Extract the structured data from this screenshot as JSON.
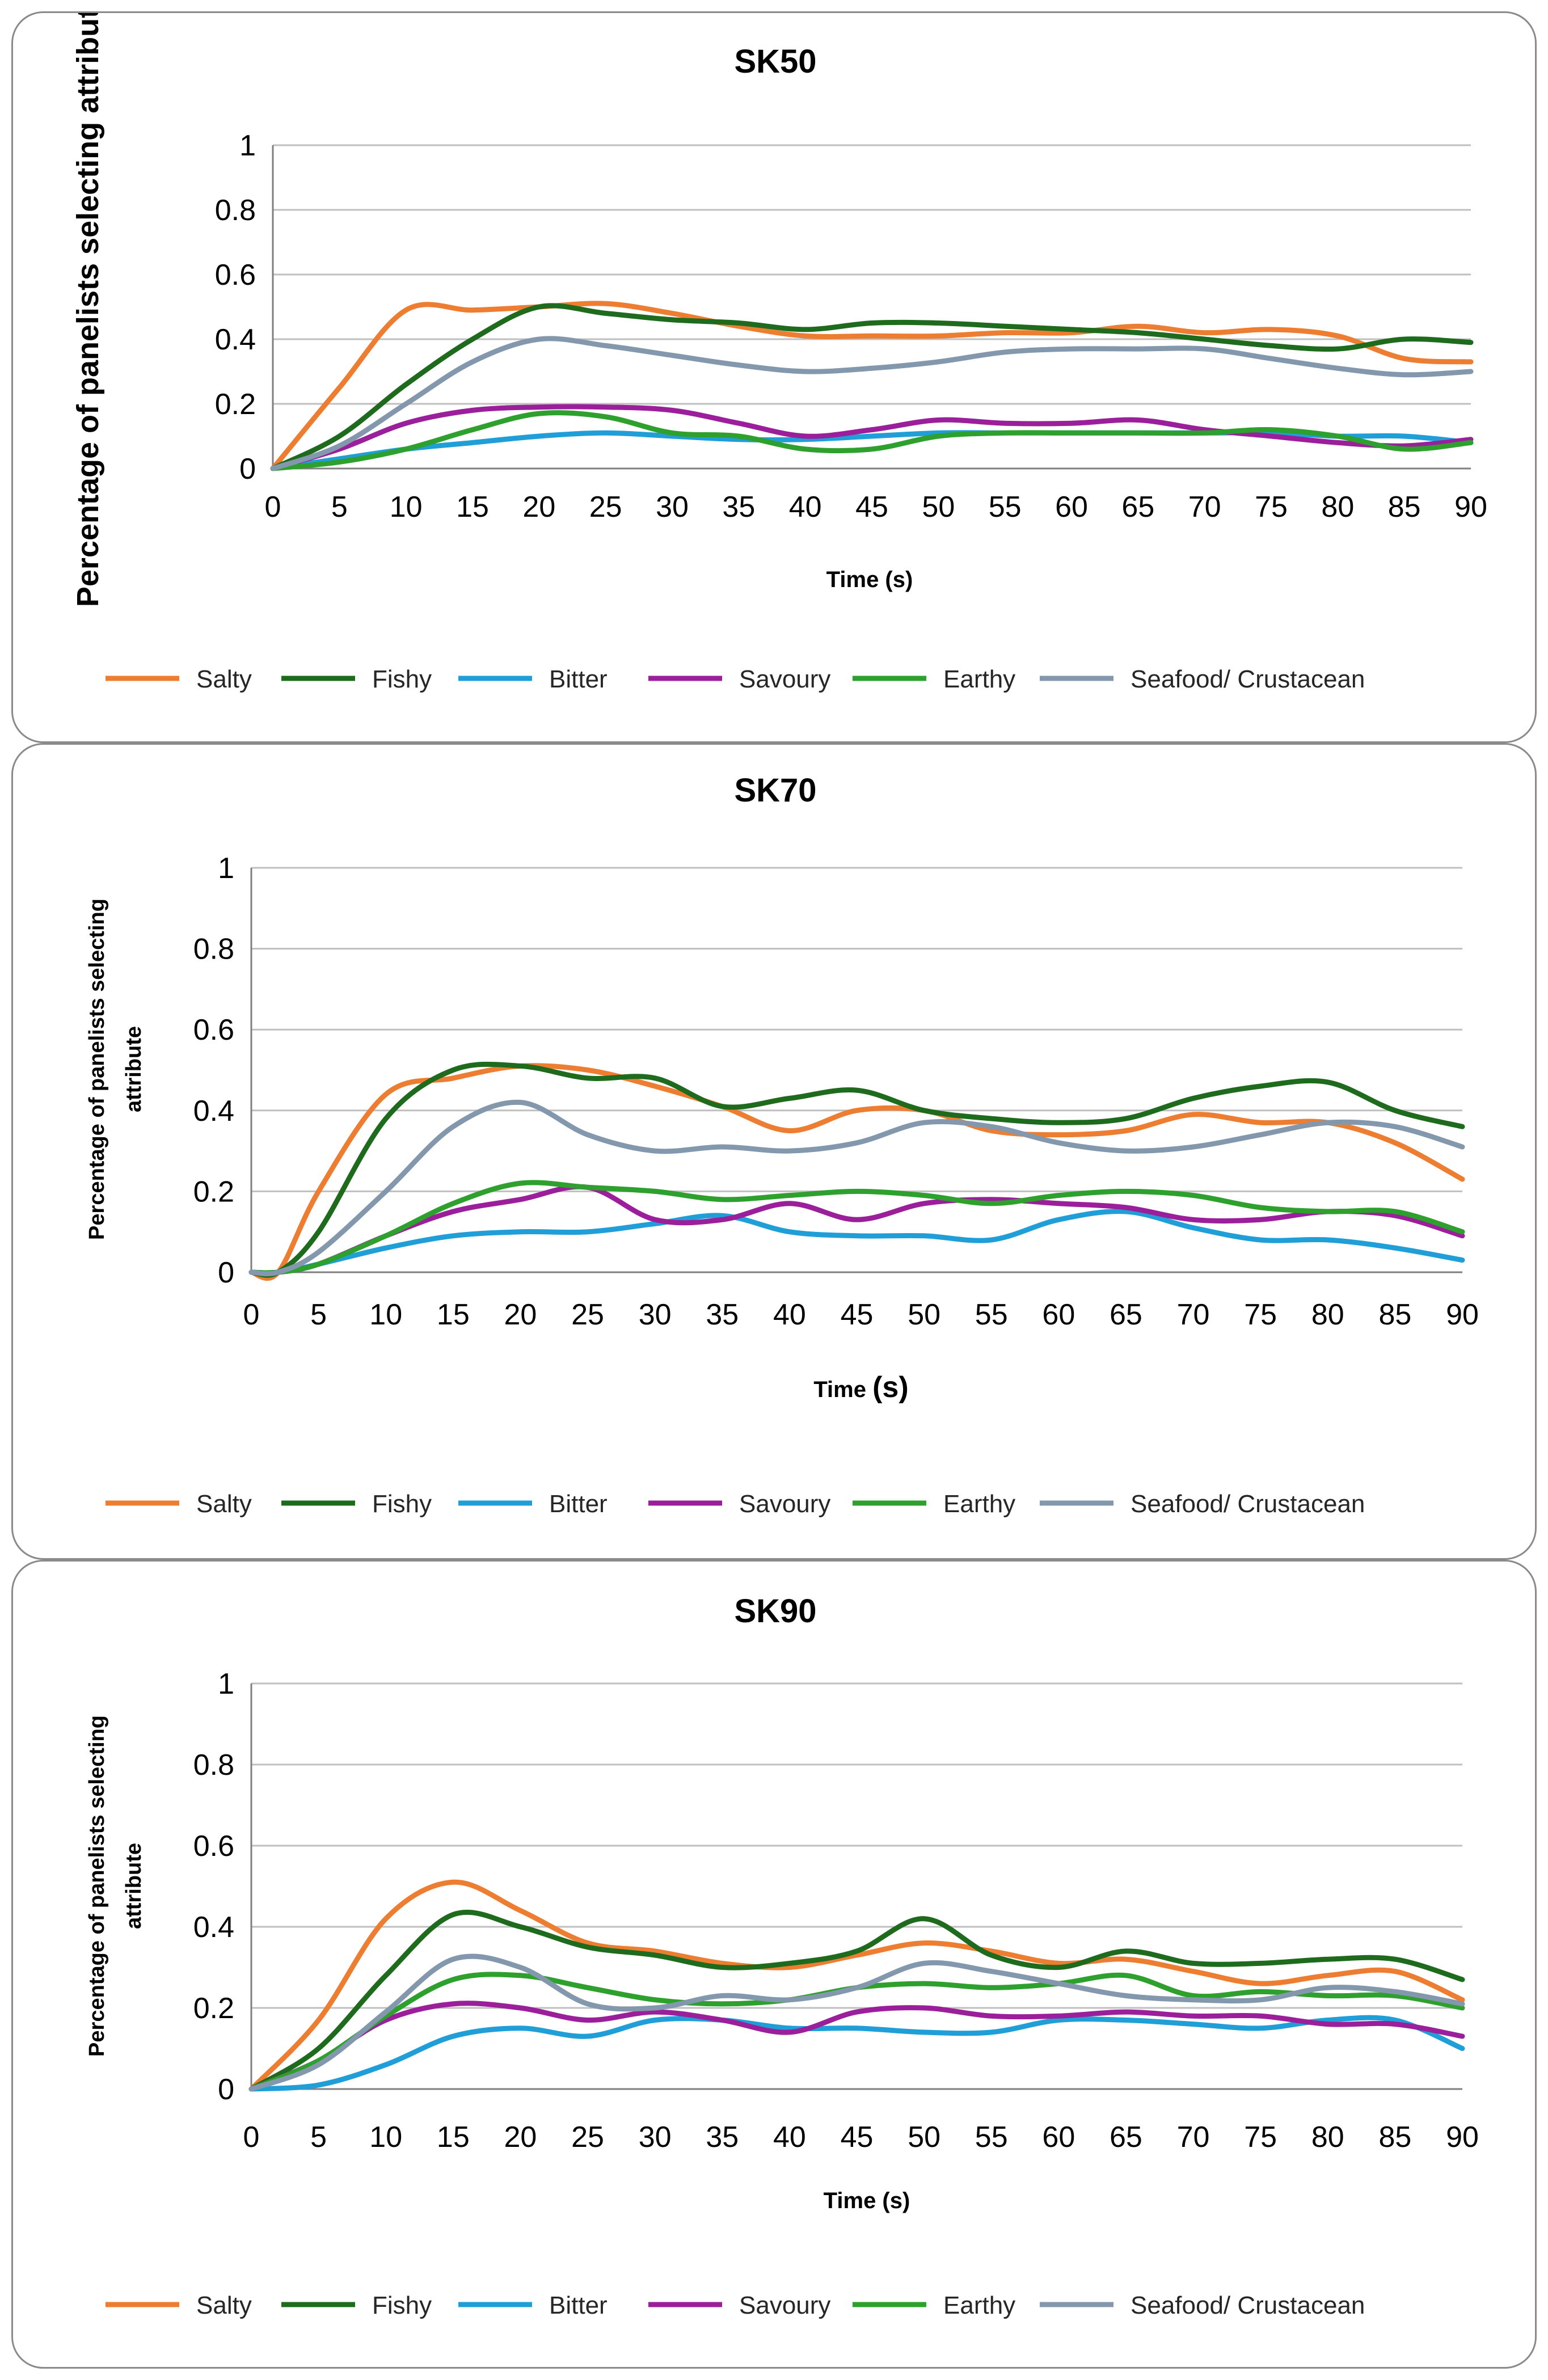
{
  "colors": {
    "Salty": "#ED7D31",
    "Fishy": "#1E6B1E",
    "Bitter": "#1F9ED8",
    "Savoury": "#9B1F9B",
    "Earthy": "#2DA02D",
    "Seafood/ Crustacean": "#8498AD"
  },
  "chart_data": [
    {
      "type": "line",
      "title": "SK50",
      "xlabel": "Time (s)",
      "ylabel": "Percentage of panelists selecting attribute",
      "xlim": [
        0,
        90
      ],
      "ylim": [
        0,
        1
      ],
      "x_ticks": [
        "0",
        "5",
        "10",
        "15",
        "20",
        "25",
        "30",
        "35",
        "40",
        "45",
        "50",
        "55",
        "60",
        "65",
        "70",
        "75",
        "80",
        "85",
        "90"
      ],
      "y_ticks": [
        "0",
        "0.2",
        "0.4",
        "0.6",
        "0.8",
        "1"
      ],
      "legend": [
        "Salty",
        "Fishy",
        "Bitter",
        "Savoury",
        "Earthy",
        "Seafood/ Crustacean"
      ],
      "x": [
        0,
        5,
        10,
        15,
        20,
        25,
        30,
        35,
        40,
        45,
        50,
        55,
        60,
        65,
        70,
        75,
        80,
        85,
        90
      ],
      "series": [
        {
          "name": "Salty",
          "values": [
            0,
            0.25,
            0.49,
            0.49,
            0.5,
            0.51,
            0.48,
            0.44,
            0.41,
            0.41,
            0.41,
            0.42,
            0.42,
            0.44,
            0.42,
            0.43,
            0.41,
            0.34,
            0.33
          ]
        },
        {
          "name": "Fishy",
          "values": [
            0,
            0.1,
            0.26,
            0.4,
            0.5,
            0.48,
            0.46,
            0.45,
            0.43,
            0.45,
            0.45,
            0.44,
            0.43,
            0.42,
            0.4,
            0.38,
            0.37,
            0.4,
            0.39
          ]
        },
        {
          "name": "Bitter",
          "values": [
            0,
            0.03,
            0.06,
            0.08,
            0.1,
            0.11,
            0.1,
            0.09,
            0.09,
            0.1,
            0.11,
            0.11,
            0.11,
            0.11,
            0.11,
            0.11,
            0.1,
            0.1,
            0.08
          ]
        },
        {
          "name": "Savoury",
          "values": [
            0,
            0.06,
            0.14,
            0.18,
            0.19,
            0.19,
            0.18,
            0.14,
            0.1,
            0.12,
            0.15,
            0.14,
            0.14,
            0.15,
            0.12,
            0.1,
            0.08,
            0.07,
            0.09
          ]
        },
        {
          "name": "Earthy",
          "values": [
            0,
            0.02,
            0.06,
            0.12,
            0.17,
            0.16,
            0.11,
            0.1,
            0.06,
            0.06,
            0.1,
            0.11,
            0.11,
            0.11,
            0.11,
            0.12,
            0.1,
            0.06,
            0.08
          ]
        },
        {
          "name": "Seafood/ Crustacean",
          "values": [
            0,
            0.07,
            0.2,
            0.33,
            0.4,
            0.38,
            0.35,
            0.32,
            0.3,
            0.31,
            0.33,
            0.36,
            0.37,
            0.37,
            0.37,
            0.34,
            0.31,
            0.29,
            0.3
          ]
        }
      ]
    },
    {
      "type": "line",
      "title": "SK70",
      "xlabel": "Time ",
      "xlabel_unit": "(s)",
      "ylabel": "Percentage of panelists selecting attribute",
      "ylabel_lines": [
        "Percentage of panelists selecting",
        "attribute"
      ],
      "xlim": [
        0,
        90
      ],
      "ylim": [
        0,
        1
      ],
      "x_ticks": [
        "0",
        "5",
        "10",
        "15",
        "20",
        "25",
        "30",
        "35",
        "40",
        "45",
        "50",
        "55",
        "60",
        "65",
        "70",
        "75",
        "80",
        "85",
        "90"
      ],
      "y_ticks": [
        "0",
        "0.2",
        "0.4",
        "0.6",
        "0.8",
        "1"
      ],
      "legend": [
        "Salty",
        "Fishy",
        "Bitter",
        "Savoury",
        "Earthy",
        "Seafood/ Crustacean"
      ],
      "x": [
        0,
        2,
        5,
        10,
        15,
        20,
        25,
        30,
        35,
        40,
        45,
        50,
        55,
        60,
        65,
        70,
        75,
        80,
        85,
        90
      ],
      "series": [
        {
          "name": "Salty",
          "values": [
            0,
            0,
            0.2,
            0.44,
            0.48,
            0.51,
            0.5,
            0.46,
            0.41,
            0.35,
            0.4,
            0.4,
            0.35,
            0.34,
            0.35,
            0.39,
            0.37,
            0.37,
            0.32,
            0.23
          ]
        },
        {
          "name": "Fishy",
          "values": [
            0,
            0,
            0.1,
            0.38,
            0.5,
            0.51,
            0.48,
            0.48,
            0.41,
            0.43,
            0.45,
            0.4,
            0.38,
            0.37,
            0.38,
            0.43,
            0.46,
            0.47,
            0.4,
            0.36
          ]
        },
        {
          "name": "Bitter",
          "values": [
            0,
            0,
            0.02,
            0.06,
            0.09,
            0.1,
            0.1,
            0.12,
            0.14,
            0.1,
            0.09,
            0.09,
            0.08,
            0.13,
            0.15,
            0.11,
            0.08,
            0.08,
            0.06,
            0.03
          ]
        },
        {
          "name": "Savoury",
          "values": [
            0,
            0,
            0.02,
            0.09,
            0.15,
            0.18,
            0.21,
            0.13,
            0.13,
            0.17,
            0.13,
            0.17,
            0.18,
            0.17,
            0.16,
            0.13,
            0.13,
            0.15,
            0.14,
            0.09
          ]
        },
        {
          "name": "Earthy",
          "values": [
            0,
            0,
            0.02,
            0.09,
            0.17,
            0.22,
            0.21,
            0.2,
            0.18,
            0.19,
            0.2,
            0.19,
            0.17,
            0.19,
            0.2,
            0.19,
            0.16,
            0.15,
            0.15,
            0.1
          ]
        },
        {
          "name": "Seafood/ Crustacean",
          "values": [
            0,
            0,
            0.05,
            0.2,
            0.36,
            0.42,
            0.34,
            0.3,
            0.31,
            0.3,
            0.32,
            0.37,
            0.36,
            0.32,
            0.3,
            0.31,
            0.34,
            0.37,
            0.36,
            0.31
          ]
        }
      ]
    },
    {
      "type": "line",
      "title": "SK90",
      "xlabel": "Time (s)",
      "ylabel": "Percentage of panelists selecting attribute",
      "ylabel_lines": [
        "Percentage of panelists selecting",
        "attribute"
      ],
      "xlim": [
        0,
        90
      ],
      "ylim": [
        0,
        1
      ],
      "x_ticks": [
        "0",
        "5",
        "10",
        "15",
        "20",
        "25",
        "30",
        "35",
        "40",
        "45",
        "50",
        "55",
        "60",
        "65",
        "70",
        "75",
        "80",
        "85",
        "90"
      ],
      "y_ticks": [
        "0",
        "0.2",
        "0.4",
        "0.6",
        "0.8",
        "1"
      ],
      "legend": [
        "Salty",
        "Fishy",
        "Bitter",
        "Savoury",
        "Earthy",
        "Seafood/ Crustacean"
      ],
      "x": [
        0,
        5,
        10,
        15,
        20,
        25,
        30,
        35,
        40,
        45,
        50,
        55,
        60,
        65,
        70,
        75,
        80,
        85,
        90
      ],
      "series": [
        {
          "name": "Salty",
          "values": [
            0,
            0.17,
            0.42,
            0.51,
            0.44,
            0.36,
            0.34,
            0.31,
            0.3,
            0.33,
            0.36,
            0.34,
            0.31,
            0.32,
            0.29,
            0.26,
            0.28,
            0.29,
            0.22
          ]
        },
        {
          "name": "Fishy",
          "values": [
            0,
            0.1,
            0.28,
            0.43,
            0.4,
            0.35,
            0.33,
            0.3,
            0.31,
            0.34,
            0.42,
            0.33,
            0.3,
            0.34,
            0.31,
            0.31,
            0.32,
            0.32,
            0.27
          ]
        },
        {
          "name": "Bitter",
          "values": [
            0,
            0.01,
            0.06,
            0.13,
            0.15,
            0.13,
            0.17,
            0.17,
            0.15,
            0.15,
            0.14,
            0.14,
            0.17,
            0.17,
            0.16,
            0.15,
            0.17,
            0.17,
            0.1
          ]
        },
        {
          "name": "Savoury",
          "values": [
            0,
            0.07,
            0.17,
            0.21,
            0.2,
            0.17,
            0.19,
            0.17,
            0.14,
            0.19,
            0.2,
            0.18,
            0.18,
            0.19,
            0.18,
            0.18,
            0.16,
            0.16,
            0.13
          ]
        },
        {
          "name": "Earthy",
          "values": [
            0,
            0.07,
            0.18,
            0.27,
            0.28,
            0.25,
            0.22,
            0.21,
            0.22,
            0.25,
            0.26,
            0.25,
            0.26,
            0.28,
            0.23,
            0.24,
            0.23,
            0.23,
            0.2
          ]
        },
        {
          "name": "Seafood/ Crustacean",
          "values": [
            0,
            0.06,
            0.19,
            0.32,
            0.3,
            0.21,
            0.2,
            0.23,
            0.22,
            0.25,
            0.31,
            0.29,
            0.26,
            0.23,
            0.22,
            0.22,
            0.25,
            0.24,
            0.21
          ]
        }
      ]
    }
  ]
}
